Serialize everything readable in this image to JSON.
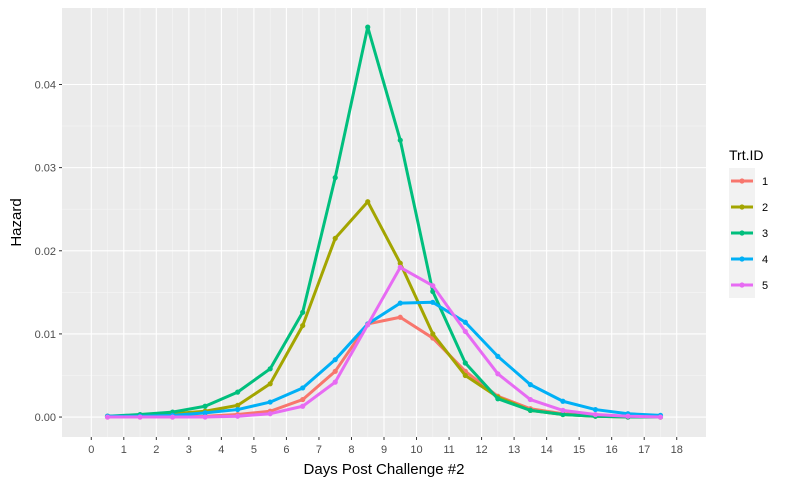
{
  "chart_data": {
    "type": "line",
    "xlabel": "Days Post Challenge #2",
    "ylabel": "Hazard",
    "xlim": [
      -0.9,
      18.9
    ],
    "ylim": [
      -0.0024,
      0.0492
    ],
    "x_ticks": [
      0,
      1,
      2,
      3,
      4,
      5,
      6,
      7,
      8,
      9,
      10,
      11,
      12,
      13,
      14,
      15,
      16,
      17,
      18
    ],
    "x_tick_labels": [
      "0",
      "1",
      "2",
      "3",
      "4",
      "5",
      "6",
      "7",
      "8",
      "9",
      "10",
      "11",
      "12",
      "13",
      "14",
      "15",
      "16",
      "17",
      "18"
    ],
    "y_ticks": [
      0,
      0.01,
      0.02,
      0.03,
      0.04
    ],
    "y_tick_labels": [
      "0.00",
      "0.01",
      "0.02",
      "0.03",
      "0.04"
    ],
    "grid": true,
    "legend": {
      "title": "Trt.ID",
      "position": "right"
    },
    "x": [
      0.5,
      1.5,
      2.5,
      3.5,
      4.5,
      5.5,
      6.5,
      7.5,
      8.5,
      9.5,
      10.5,
      11.5,
      12.5,
      13.5,
      14.5,
      15.5,
      16.5,
      17.5
    ],
    "series": [
      {
        "name": "1",
        "color": "#F8766D",
        "values": [
          0.0,
          0.0,
          0.0,
          0.0001,
          0.0003,
          0.0007,
          0.0021,
          0.0055,
          0.0112,
          0.012,
          0.0095,
          0.0055,
          0.0025,
          0.001,
          0.0004,
          0.0002,
          0.0001,
          0.0
        ]
      },
      {
        "name": "2",
        "color": "#A3A500",
        "values": [
          0.0001,
          0.0002,
          0.0004,
          0.0007,
          0.0014,
          0.004,
          0.011,
          0.0215,
          0.0259,
          0.0185,
          0.01,
          0.005,
          0.0024,
          0.0008,
          0.0003,
          0.0001,
          0.0,
          0.0
        ]
      },
      {
        "name": "3",
        "color": "#00BF7D",
        "values": [
          0.0001,
          0.0003,
          0.0006,
          0.0013,
          0.003,
          0.0058,
          0.0126,
          0.0288,
          0.0469,
          0.0333,
          0.0151,
          0.0065,
          0.0022,
          0.0008,
          0.0003,
          0.0001,
          0.0,
          0.0
        ]
      },
      {
        "name": "4",
        "color": "#00B0F6",
        "values": [
          0.0001,
          0.0001,
          0.0002,
          0.0005,
          0.0009,
          0.0018,
          0.0035,
          0.0069,
          0.0112,
          0.0137,
          0.0138,
          0.0114,
          0.0073,
          0.0039,
          0.0019,
          0.0009,
          0.0004,
          0.0002
        ]
      },
      {
        "name": "5",
        "color": "#E76BF3",
        "values": [
          0.0,
          0.0,
          0.0,
          0.0,
          0.0001,
          0.0004,
          0.0013,
          0.0042,
          0.0111,
          0.018,
          0.0158,
          0.0103,
          0.0052,
          0.0021,
          0.0008,
          0.0003,
          0.0001,
          0.0
        ]
      }
    ]
  }
}
